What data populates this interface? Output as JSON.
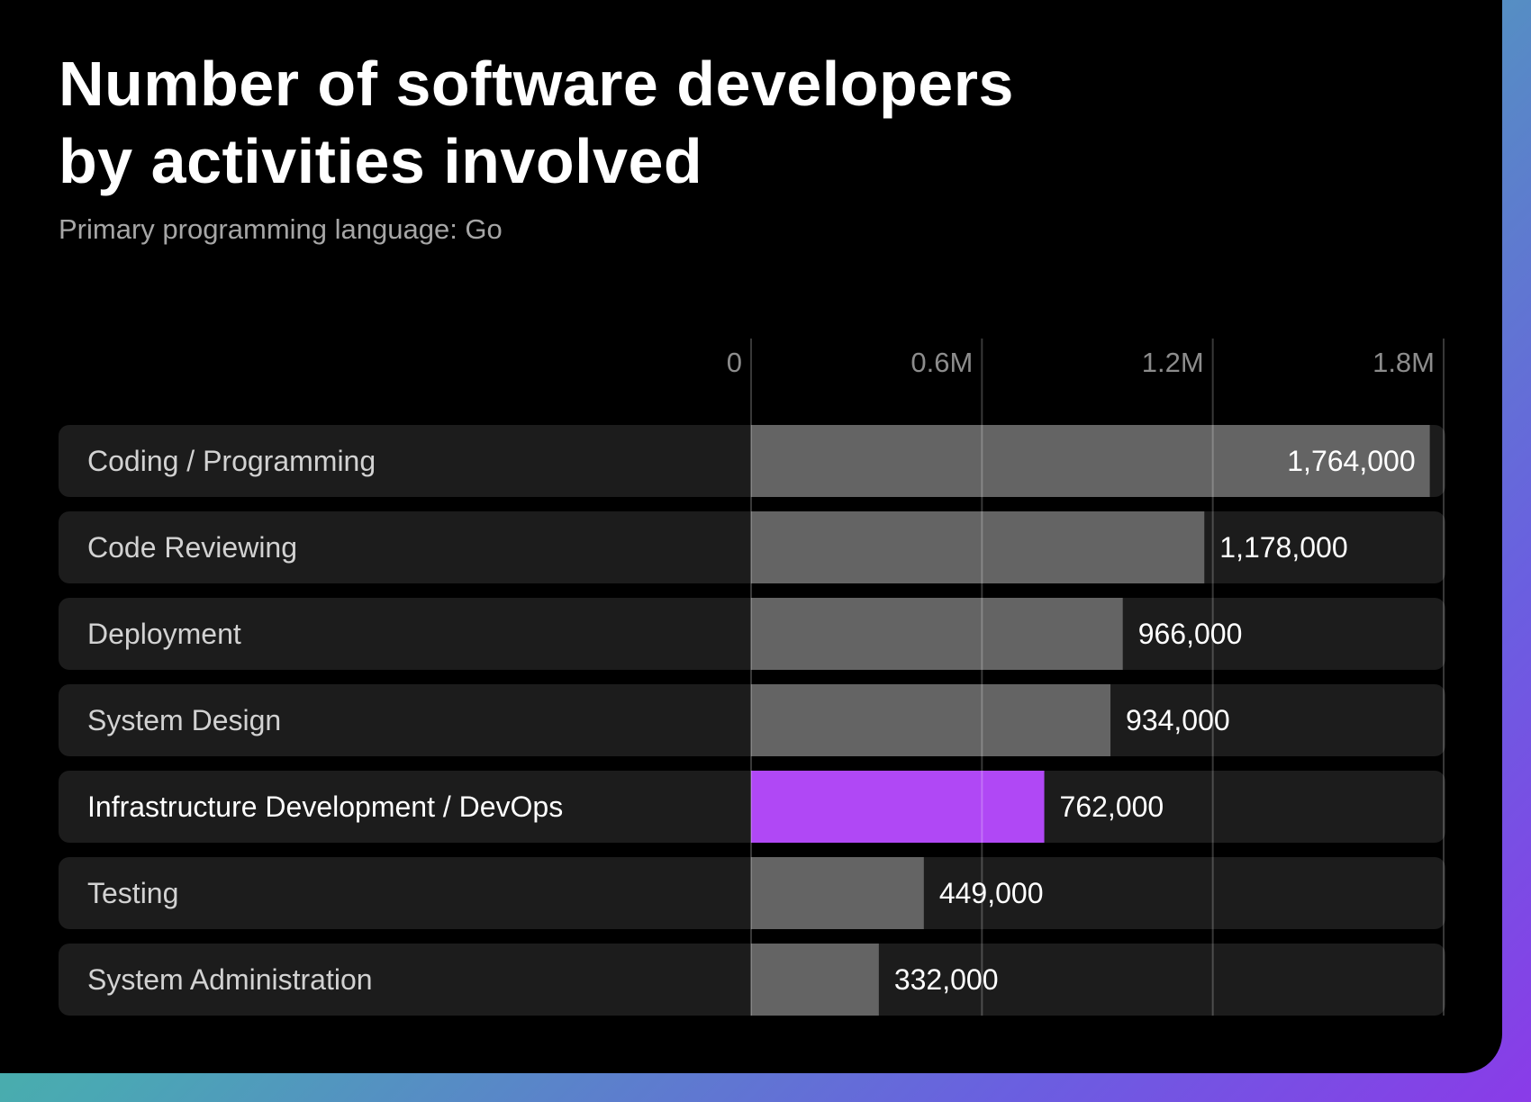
{
  "title_lines": [
    "Number of software developers",
    "by activities involved"
  ],
  "subtitle": "Primary programming language: Go",
  "colors": {
    "background": "#000000",
    "row_background": "#1c1c1c",
    "bar_default": "#646464",
    "bar_highlight": "#b048f5",
    "text": "#ffffff",
    "muted_text": "#a6a6a6",
    "gridline": "#3a3a3a"
  },
  "chart_data": {
    "type": "bar",
    "orientation": "horizontal",
    "categories": [
      "Coding / Programming",
      "Code Reviewing",
      "Deployment",
      "System Design",
      "Infrastructure Development / DevOps",
      "Testing",
      "System Administration"
    ],
    "values": [
      1764000,
      1178000,
      966000,
      934000,
      762000,
      449000,
      332000
    ],
    "value_labels": [
      "1,764,000",
      "1,178,000",
      "966,000",
      "934,000",
      "762,000",
      "449,000",
      "332,000"
    ],
    "highlighted_category": "Infrastructure Development / DevOps",
    "xlim": [
      0,
      1800000
    ],
    "xticks": [
      0,
      600000,
      1200000,
      1800000
    ],
    "xtick_labels": [
      "0",
      "0.6M",
      "1.2M",
      "1.8M"
    ],
    "grid": true
  }
}
